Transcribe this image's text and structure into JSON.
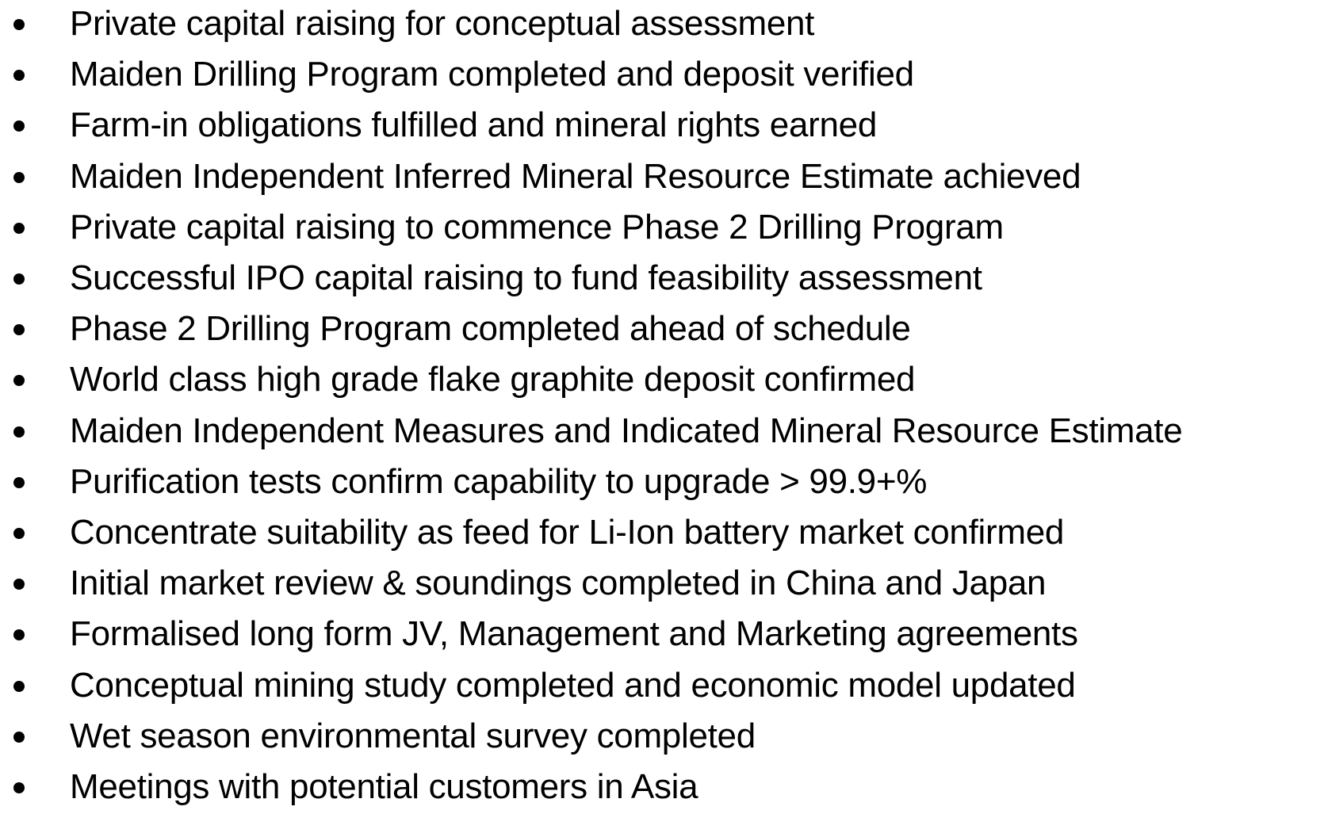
{
  "items": [
    "Private capital raising for conceptual assessment",
    "Maiden Drilling Program completed and deposit verified",
    "Farm-in obligations fulfilled and mineral rights earned",
    "Maiden Independent Inferred Mineral Resource Estimate achieved",
    "Private capital raising to commence Phase 2 Drilling Program",
    "Successful IPO capital raising to fund feasibility assessment",
    "Phase 2 Drilling Program completed ahead of schedule",
    "World class high grade flake graphite deposit confirmed",
    "Maiden Independent Measures and Indicated Mineral Resource Estimate",
    "Purification tests confirm capability to upgrade > 99.9+%",
    "Concentrate suitability as feed for Li-Ion battery market confirmed",
    "Initial market review & soundings completed in China and Japan",
    "Formalised long form JV, Management and Marketing agreements",
    "Conceptual mining study completed and economic model updated",
    "Wet season environmental survey completed",
    "Meetings with potential customers in Asia"
  ]
}
